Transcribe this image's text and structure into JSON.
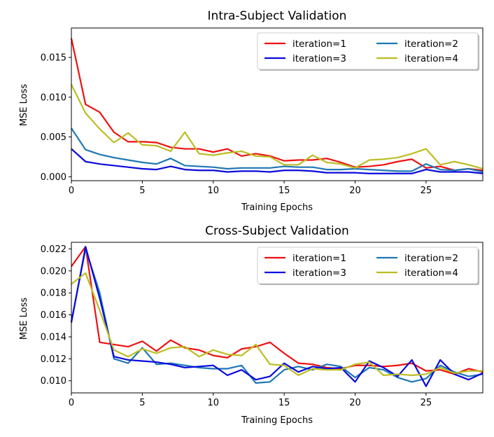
{
  "chart_data": [
    {
      "type": "line",
      "title": "Intra-Subject Validation",
      "xlabel": "Training Epochs",
      "ylabel": "MSE Loss",
      "xlim": [
        0,
        29
      ],
      "ylim": [
        -0.0005,
        0.0187
      ],
      "xticks": [
        0,
        5,
        10,
        15,
        20,
        25
      ],
      "xtick_labels": [
        "0",
        "5",
        "10",
        "15",
        "20",
        "25"
      ],
      "yticks": [
        0.0,
        0.005,
        0.01,
        0.015
      ],
      "ytick_labels": [
        "0.000",
        "0.005",
        "0.010",
        "0.015"
      ],
      "grid": false,
      "legend_position": "top-right",
      "x": [
        0,
        1,
        2,
        3,
        4,
        5,
        6,
        7,
        8,
        9,
        10,
        11,
        12,
        13,
        14,
        15,
        16,
        17,
        18,
        19,
        20,
        21,
        22,
        23,
        24,
        25,
        26,
        27,
        28,
        29
      ],
      "series": [
        {
          "name": "iteration=1",
          "color": "#ee1111",
          "values": [
            0.0174,
            0.0091,
            0.0081,
            0.0056,
            0.0044,
            0.0044,
            0.0043,
            0.0037,
            0.0035,
            0.0035,
            0.0031,
            0.0035,
            0.0026,
            0.0029,
            0.0026,
            0.002,
            0.0021,
            0.0021,
            0.0023,
            0.0018,
            0.0012,
            0.0013,
            0.0015,
            0.0019,
            0.0022,
            0.0011,
            0.0013,
            0.0008,
            0.001,
            0.0008
          ]
        },
        {
          "name": "iteration=2",
          "color": "#1f77b4",
          "values": [
            0.0061,
            0.0034,
            0.0028,
            0.0024,
            0.0021,
            0.0018,
            0.0016,
            0.0023,
            0.0014,
            0.0013,
            0.0012,
            0.001,
            0.0011,
            0.0011,
            0.0011,
            0.0013,
            0.0012,
            0.0012,
            0.0009,
            0.0009,
            0.001,
            0.0009,
            0.0008,
            0.0007,
            0.0007,
            0.0016,
            0.0009,
            0.0008,
            0.001,
            0.0006
          ]
        },
        {
          "name": "iteration=3",
          "color": "#0a0adc",
          "values": [
            0.0035,
            0.0019,
            0.0016,
            0.0014,
            0.0012,
            0.001,
            0.0009,
            0.0013,
            0.0009,
            0.0008,
            0.0008,
            0.0006,
            0.0007,
            0.0007,
            0.0006,
            0.0008,
            0.0008,
            0.0007,
            0.0005,
            0.0005,
            0.0005,
            0.0004,
            0.0004,
            0.0004,
            0.0004,
            0.0009,
            0.0006,
            0.0006,
            0.0006,
            0.0004
          ]
        },
        {
          "name": "iteration=4",
          "color": "#bcbd22",
          "values": [
            0.0116,
            0.008,
            0.006,
            0.0043,
            0.0055,
            0.004,
            0.0039,
            0.0032,
            0.0056,
            0.0029,
            0.0027,
            0.003,
            0.0032,
            0.0026,
            0.0025,
            0.0015,
            0.0015,
            0.0027,
            0.0018,
            0.0016,
            0.0011,
            0.0021,
            0.0022,
            0.0024,
            0.0029,
            0.0035,
            0.0015,
            0.0019,
            0.0015,
            0.001
          ]
        }
      ],
      "legend_order": [
        0,
        1,
        2,
        3
      ]
    },
    {
      "type": "line",
      "title": "Cross-Subject Validation",
      "xlabel": "Training Epochs",
      "ylabel": "MSE Loss",
      "xlim": [
        0,
        29
      ],
      "ylim": [
        0.0089,
        0.0226
      ],
      "xticks": [
        0,
        5,
        10,
        15,
        20,
        25
      ],
      "xtick_labels": [
        "0",
        "5",
        "10",
        "15",
        "20",
        "25"
      ],
      "yticks": [
        0.01,
        0.012,
        0.014,
        0.016,
        0.018,
        0.02,
        0.022
      ],
      "ytick_labels": [
        "0.010",
        "0.012",
        "0.014",
        "0.016",
        "0.018",
        "0.020",
        "0.022"
      ],
      "grid": false,
      "legend_position": "top-right",
      "x": [
        0,
        1,
        2,
        3,
        4,
        5,
        6,
        7,
        8,
        9,
        10,
        11,
        12,
        13,
        14,
        15,
        16,
        17,
        18,
        19,
        20,
        21,
        22,
        23,
        24,
        25,
        26,
        27,
        28,
        29
      ],
      "series": [
        {
          "name": "iteration=1",
          "color": "#ee1111",
          "values": [
            0.0204,
            0.0222,
            0.0135,
            0.0133,
            0.0131,
            0.0136,
            0.0127,
            0.0137,
            0.013,
            0.0128,
            0.0123,
            0.0121,
            0.0129,
            0.0131,
            0.0135,
            0.0125,
            0.0116,
            0.0115,
            0.0112,
            0.0111,
            0.0114,
            0.0114,
            0.0113,
            0.0114,
            0.0116,
            0.0109,
            0.011,
            0.0106,
            0.0111,
            0.0108
          ]
        },
        {
          "name": "iteration=2",
          "color": "#1f77b4",
          "values": [
            0.0154,
            0.022,
            0.018,
            0.012,
            0.0116,
            0.013,
            0.0115,
            0.0116,
            0.0114,
            0.0112,
            0.0111,
            0.0111,
            0.0114,
            0.0098,
            0.0099,
            0.011,
            0.0113,
            0.011,
            0.0115,
            0.0113,
            0.0103,
            0.0112,
            0.011,
            0.0103,
            0.0099,
            0.0102,
            0.0114,
            0.0108,
            0.0104,
            0.0106
          ]
        },
        {
          "name": "iteration=3",
          "color": "#0a0adc",
          "values": [
            0.0153,
            0.0222,
            0.0175,
            0.0122,
            0.0119,
            0.0118,
            0.0117,
            0.0115,
            0.0112,
            0.0113,
            0.0114,
            0.0105,
            0.011,
            0.0101,
            0.0104,
            0.0116,
            0.0108,
            0.0113,
            0.0111,
            0.0112,
            0.0099,
            0.0118,
            0.0112,
            0.0104,
            0.0119,
            0.0095,
            0.0119,
            0.0106,
            0.0101,
            0.0107
          ]
        },
        {
          "name": "iteration=4",
          "color": "#bcbd22",
          "values": [
            0.0188,
            0.0198,
            0.0164,
            0.0128,
            0.0122,
            0.0129,
            0.0125,
            0.013,
            0.0131,
            0.0122,
            0.0128,
            0.0124,
            0.0123,
            0.0133,
            0.0115,
            0.0114,
            0.0105,
            0.0111,
            0.011,
            0.011,
            0.0115,
            0.0117,
            0.0105,
            0.0106,
            0.0105,
            0.0106,
            0.0112,
            0.0107,
            0.0109,
            0.0109
          ]
        }
      ],
      "legend_order": [
        0,
        1,
        2,
        3
      ]
    }
  ]
}
